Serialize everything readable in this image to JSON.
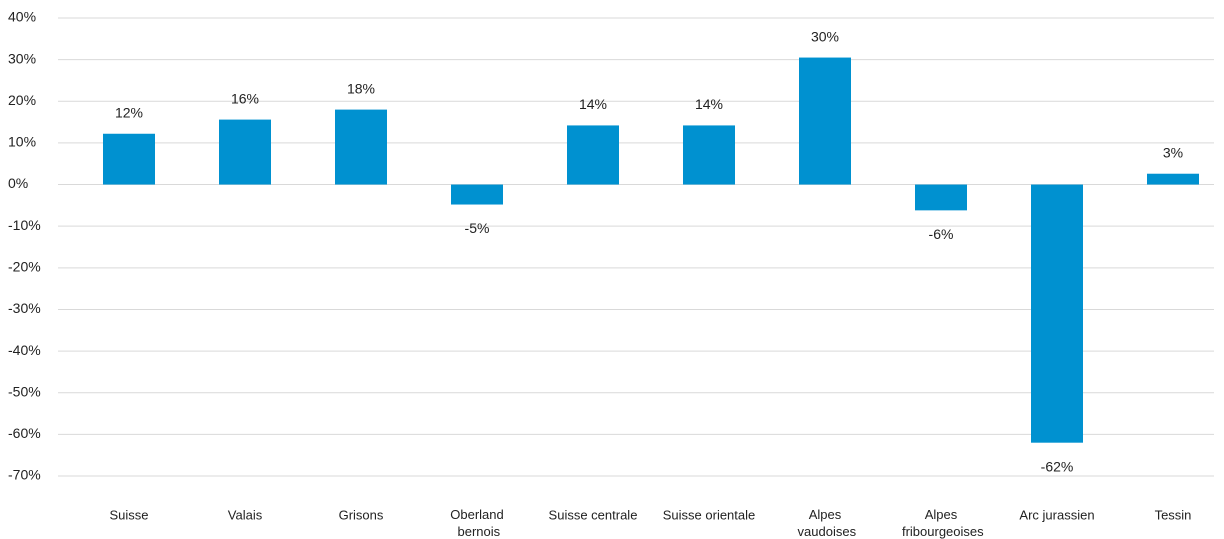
{
  "chart_data": {
    "type": "bar",
    "categories": [
      "Suisse",
      "Valais",
      "Grisons",
      "Oberland bernois",
      "Suisse centrale",
      "Suisse orientale",
      "Alpes vaudoises",
      "Alpes fribourgeoises",
      "Arc jurassien",
      "Tessin"
    ],
    "values": [
      12.2,
      15.6,
      18,
      -4.8,
      14.2,
      14.2,
      30.5,
      -6.2,
      -62,
      2.6
    ],
    "value_labels": [
      "12%",
      "16%",
      "18%",
      "-5%",
      "14%",
      "14%",
      "30%",
      "-6%",
      "-62%",
      "3%"
    ],
    "color": "#0091d0",
    "ylim": [
      -70,
      40
    ],
    "yticks": [
      {
        "value": -70,
        "label": "-70%"
      },
      {
        "value": -60,
        "label": "-60%"
      },
      {
        "value": -50,
        "label": "-50%"
      },
      {
        "value": -40,
        "label": "-40%"
      },
      {
        "value": -30,
        "label": "-30%"
      },
      {
        "value": -20,
        "label": "-20%"
      },
      {
        "value": -10,
        "label": "-10%"
      },
      {
        "value": 0,
        "label": "0%"
      },
      {
        "value": 10,
        "label": "10%"
      },
      {
        "value": 20,
        "label": "20%"
      },
      {
        "value": 30,
        "label": "30%"
      },
      {
        "value": 40,
        "label": "40%"
      }
    ],
    "grid": true
  }
}
